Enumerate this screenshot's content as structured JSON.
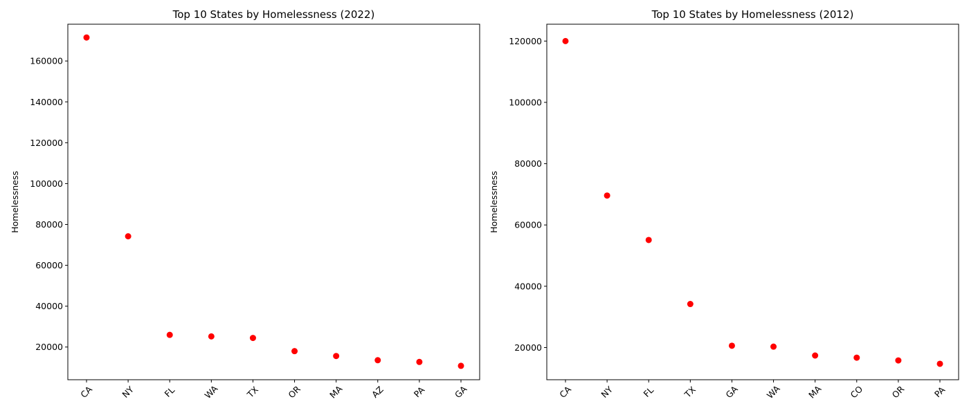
{
  "chart_data": [
    {
      "type": "scatter",
      "title": "Top 10 States by Homelessness (2022)",
      "xlabel": "",
      "ylabel": "Homelessness",
      "categories": [
        "CA",
        "NY",
        "FL",
        "WA",
        "TX",
        "OR",
        "MA",
        "AZ",
        "PA",
        "GA"
      ],
      "values": [
        171500,
        74200,
        25950,
        25200,
        24450,
        18000,
        15600,
        13550,
        12700,
        10800
      ],
      "ylim": [
        4000,
        178000
      ],
      "yticks": [
        20000,
        40000,
        60000,
        80000,
        100000,
        120000,
        140000,
        160000
      ],
      "grid": false,
      "color": "#ff0000"
    },
    {
      "type": "scatter",
      "title": "Top 10 States by Homelessness (2012)",
      "xlabel": "",
      "ylabel": "Homelessness",
      "categories": [
        "CA",
        "NY",
        "FL",
        "TX",
        "GA",
        "WA",
        "MA",
        "CO",
        "OR",
        "PA"
      ],
      "values": [
        120000,
        69600,
        55100,
        34200,
        20600,
        20300,
        17400,
        16700,
        15800,
        14700
      ],
      "ylim": [
        9500,
        125500
      ],
      "yticks": [
        20000,
        40000,
        60000,
        80000,
        100000,
        120000
      ],
      "grid": false,
      "color": "#ff0000"
    }
  ]
}
